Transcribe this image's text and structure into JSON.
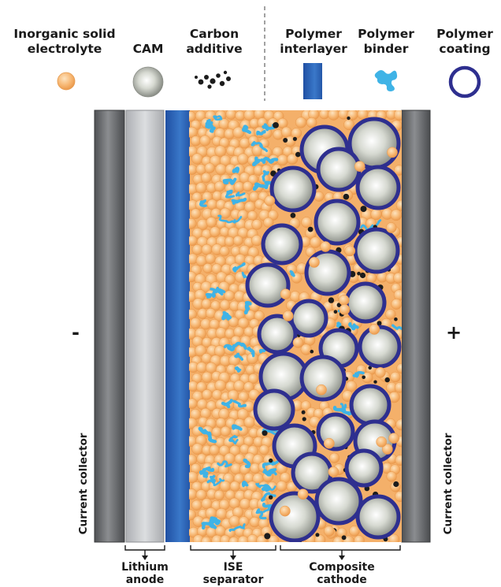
{
  "legend": {
    "inorganic": {
      "line1": "Inorganic solid",
      "line2": "electrolyte"
    },
    "cam": {
      "line1": "CAM"
    },
    "carbon": {
      "line1": "Carbon",
      "line2": "additive"
    },
    "interlayer": {
      "line1": "Polymer",
      "line2": "interlayer"
    },
    "binder": {
      "line1": "Polymer",
      "line2": "binder"
    },
    "coating": {
      "line1": "Polymer",
      "line2": "coating"
    }
  },
  "terminals": {
    "negative": "-",
    "positive": "+"
  },
  "collectors": {
    "left": "Current collector",
    "right": "Current collector"
  },
  "regions": {
    "anode": {
      "line1": "Lithium",
      "line2": "anode"
    },
    "separator": {
      "line1": "ISE",
      "line2": "separator"
    },
    "cathode": {
      "line1": "Composite",
      "line2": "cathode"
    }
  },
  "colors": {
    "electrolyte": "#f6b46c",
    "cam": "#c9ccc3",
    "carbon": "#1c1c1c",
    "interlayer": "#2a5db0",
    "binder": "#3fb3e6",
    "coating": "#2e2f8f",
    "collector": "#6b6d70",
    "anode": "#c4c6c9"
  }
}
